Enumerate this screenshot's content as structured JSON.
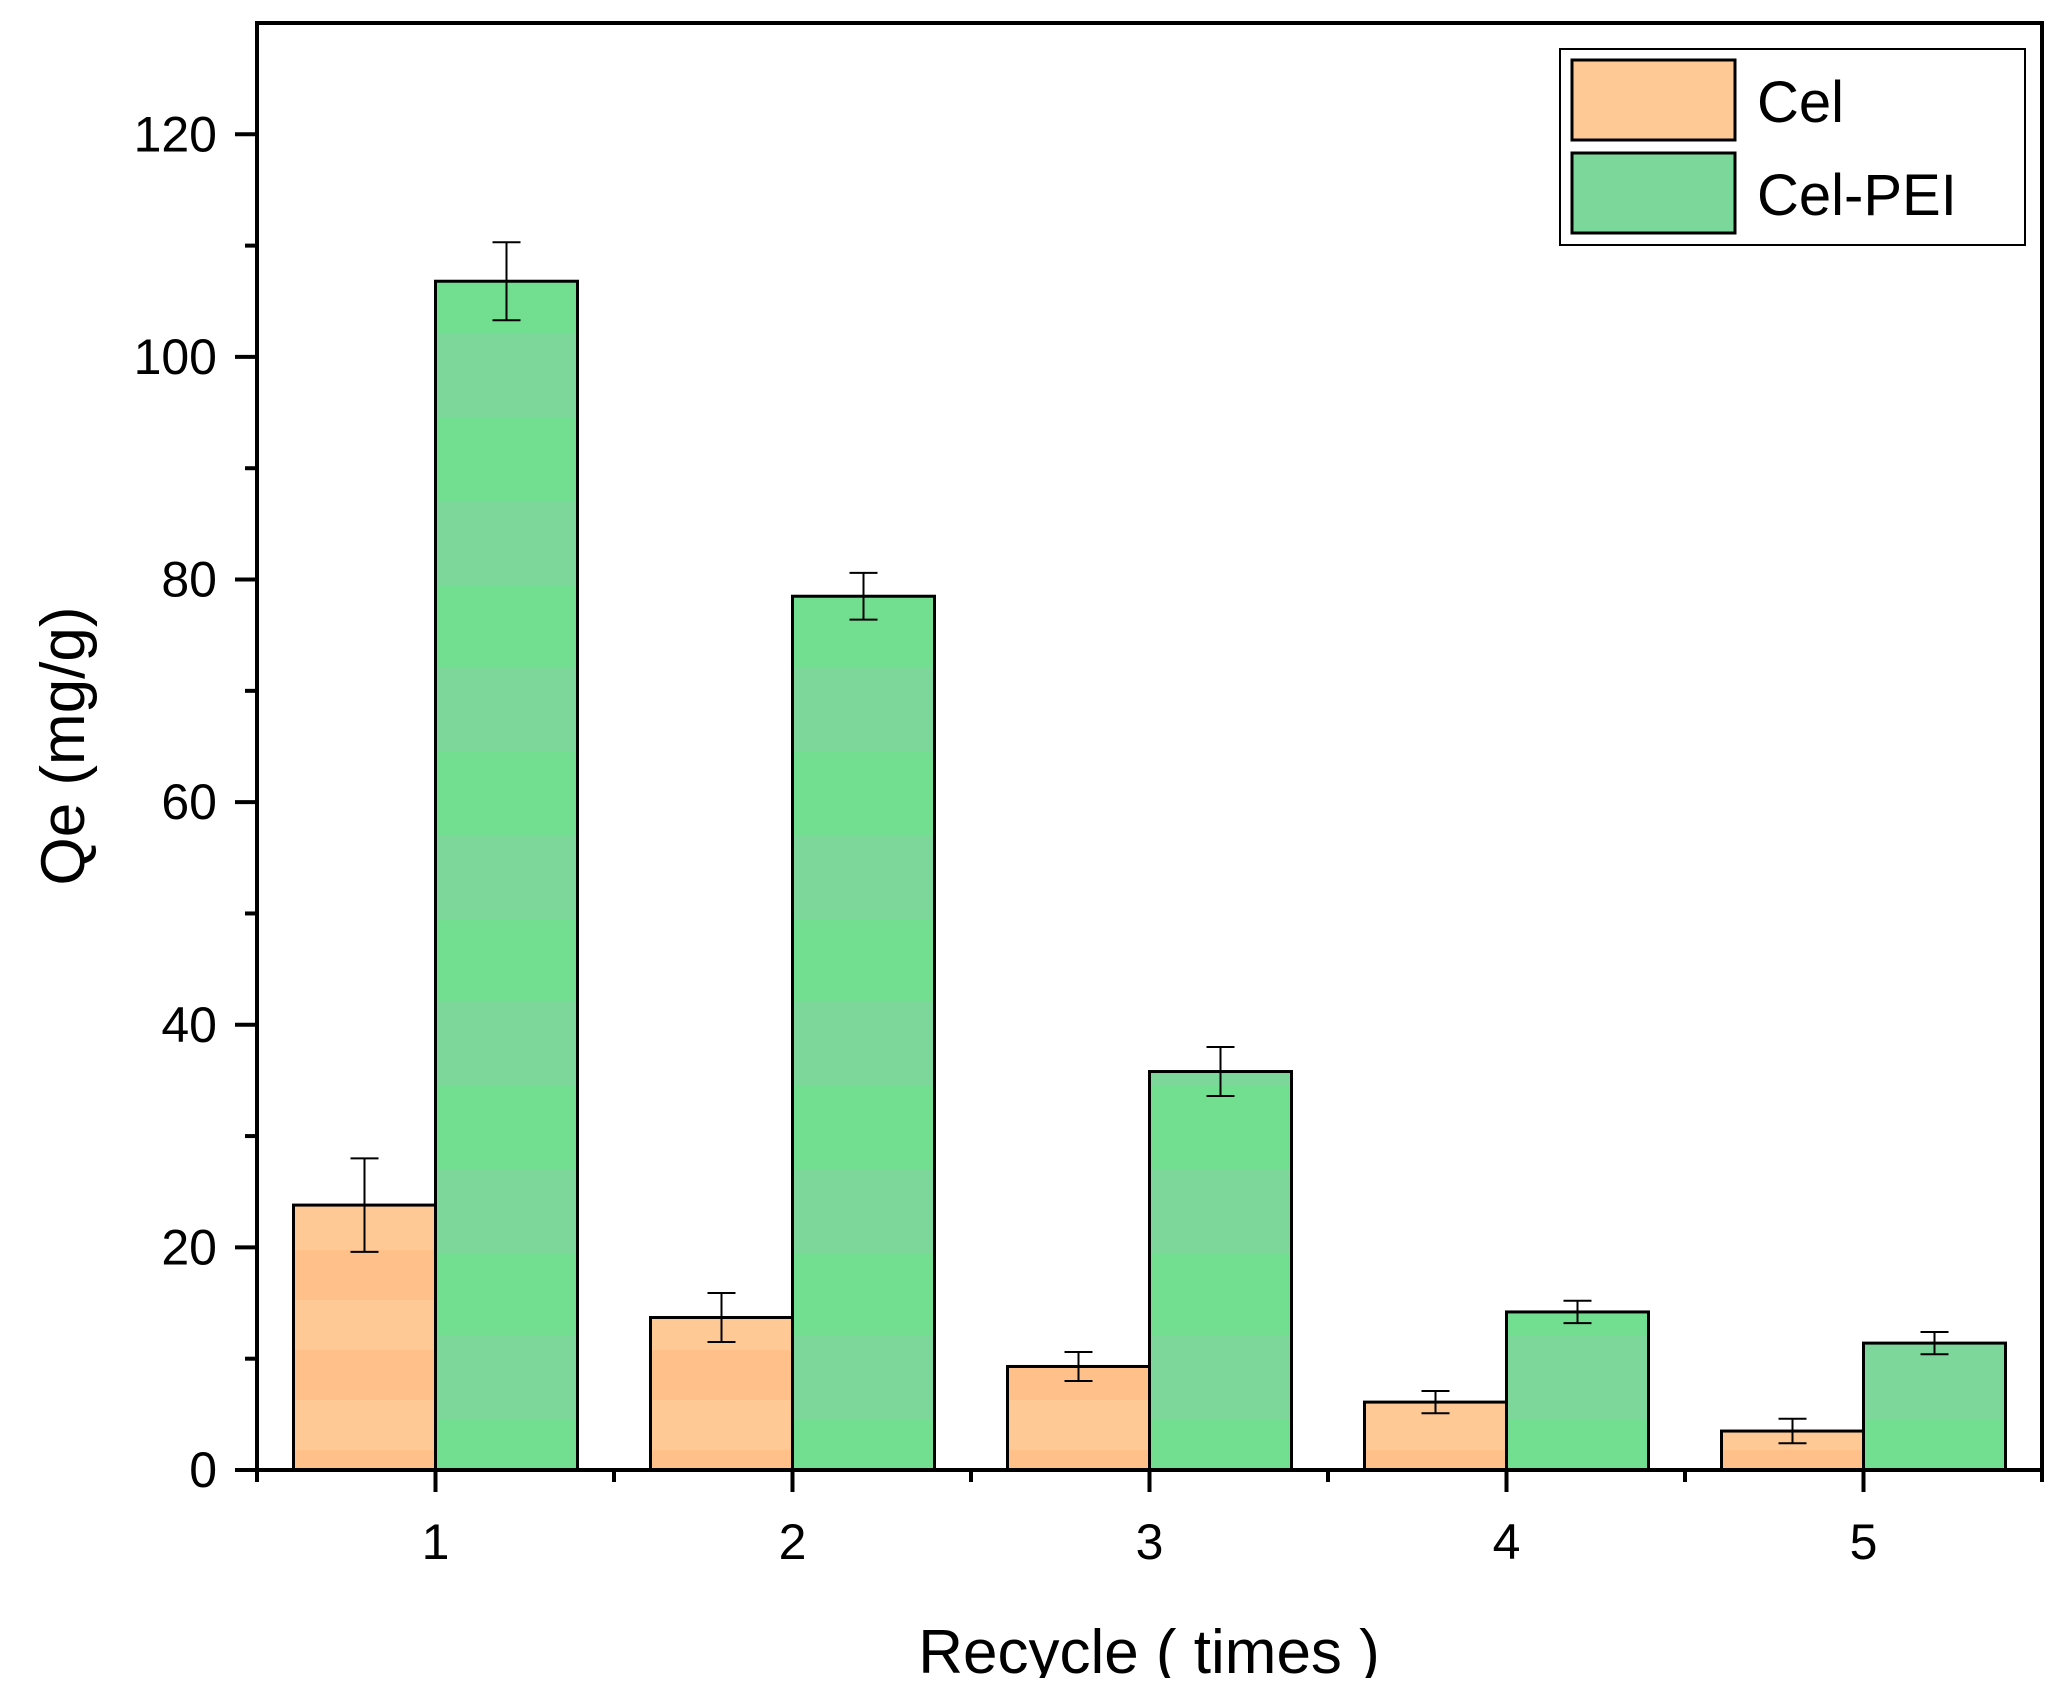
{
  "chart_data": {
    "type": "bar",
    "title": "",
    "xlabel": "Recycle ( times )",
    "ylabel": "Qe (mg/g)",
    "categories": [
      "1",
      "2",
      "3",
      "4",
      "5"
    ],
    "ylim": [
      0,
      130
    ],
    "yticks": [
      "0",
      "20",
      "40",
      "60",
      "80",
      "100",
      "120"
    ],
    "grid": false,
    "legend_position": "top-right",
    "series": [
      {
        "name": "Cel",
        "color": "#FFC996",
        "values": [
          23.8,
          13.7,
          9.3,
          6.1,
          3.5
        ],
        "errors": [
          4.2,
          2.2,
          1.3,
          1.0,
          1.1
        ]
      },
      {
        "name": "Cel-PEI",
        "color": "#7CD79A",
        "values": [
          106.8,
          78.5,
          35.8,
          14.2,
          11.4
        ],
        "errors": [
          3.5,
          2.1,
          2.2,
          1.0,
          1.0
        ]
      }
    ]
  }
}
